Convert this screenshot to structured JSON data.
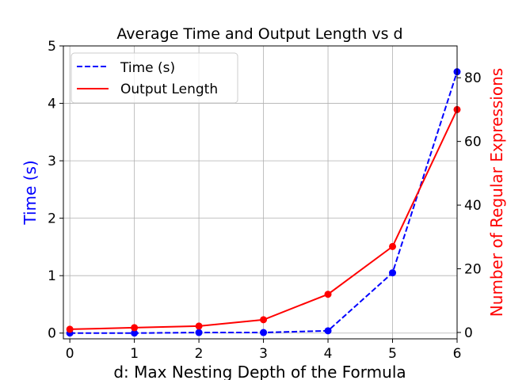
{
  "chart_data": {
    "type": "line",
    "title": "Average Time and Output Length vs d",
    "xlabel": "d: Max Nesting Depth of the Formula",
    "ylabel_left": "Time (s)",
    "ylabel_right": "Number of Regular Expressions",
    "x": [
      0,
      1,
      2,
      3,
      4,
      5,
      6
    ],
    "xlim": [
      -0.1,
      6.0
    ],
    "ylim_left": [
      -0.1,
      5.0
    ],
    "ylim_right": [
      -2,
      90
    ],
    "yticks_left": [
      0,
      1,
      2,
      3,
      4,
      5
    ],
    "yticks_right": [
      0,
      20,
      40,
      60,
      80
    ],
    "grid": true,
    "legend_position": "top-left",
    "series": [
      {
        "name": "Time (s)",
        "axis": "left",
        "style": "dashed",
        "color": "#0000ff",
        "values": [
          0.0,
          0.0,
          0.01,
          0.01,
          0.04,
          1.05,
          4.55
        ]
      },
      {
        "name": "Output Length",
        "axis": "right",
        "style": "solid",
        "color": "#ff0000",
        "values": [
          1,
          1.5,
          2,
          4,
          12,
          27,
          70
        ]
      }
    ]
  }
}
